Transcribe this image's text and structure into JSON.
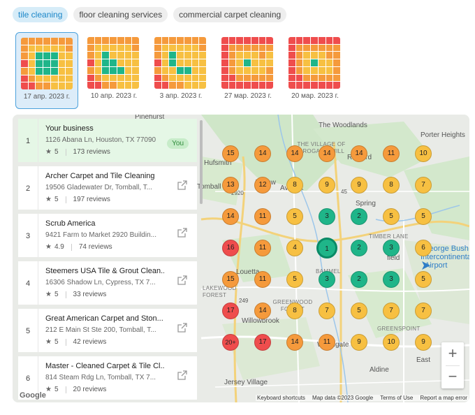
{
  "keywords": [
    {
      "label": "tile cleaning",
      "active": true
    },
    {
      "label": "floor cleaning services",
      "active": false
    },
    {
      "label": "commercial carpet cleaning",
      "active": false
    }
  ],
  "history": [
    {
      "date": "17 апр. 2023 г.",
      "active": true
    },
    {
      "date": "10 апр. 2023 г.",
      "active": false
    },
    {
      "date": "3 апр. 2023 г.",
      "active": false
    },
    {
      "date": "27 мар. 2023 г.",
      "active": false
    },
    {
      "date": "20 мар. 2023 г.",
      "active": false
    }
  ],
  "colors": {
    "green": "#1fb589",
    "yellow": "#f7c042",
    "orange": "#f59a3c",
    "red": "#ef4d4d",
    "you_bg": "#e5f7e6",
    "accent": "#1a86c8"
  },
  "results": [
    {
      "index": "1",
      "name": "Your business",
      "address": "1126 Abana Ln, Houston, TX 77090",
      "rating": "5",
      "reviews": "173 reviews",
      "badge": "You",
      "icon": "external-link-icon"
    },
    {
      "index": "2",
      "name": "Archer Carpet and Tile Cleaning",
      "address": "19506 Gladewater Dr, Tomball, T...",
      "rating": "5",
      "reviews": "197 reviews",
      "icon": "external-link-icon"
    },
    {
      "index": "3",
      "name": "Scrub America",
      "address": "9421 Farm to Market 2920 Buildin...",
      "rating": "4.9",
      "reviews": "74 reviews",
      "icon": "external-link-icon"
    },
    {
      "index": "4",
      "name": "Steemers USA Tile & Grout Clean...",
      "address": "16306 Shadow Ln, Cypress, TX 7...",
      "rating": "5",
      "reviews": "33 reviews",
      "icon": "external-link-icon"
    },
    {
      "index": "5",
      "name": "Great American Carpet and Ston...",
      "address": "212 E Main St Ste 200, Tomball, T...",
      "rating": "5",
      "reviews": "42 reviews",
      "icon": "external-link-icon"
    },
    {
      "index": "6",
      "name": "Master - Cleaned Carpet & Tile Cl...",
      "address": "814 Steam Rdg Ln, Tomball, TX 7...",
      "rating": "5",
      "reviews": "20 reviews",
      "icon": "external-link-icon"
    }
  ],
  "rank_grid": [
    [
      "15",
      "14",
      "14",
      "14",
      "14",
      "11",
      "10"
    ],
    [
      "13",
      "12",
      "8",
      "9",
      "9",
      "8",
      "7"
    ],
    [
      "14",
      "11",
      "5",
      "3",
      "2",
      "5",
      "5"
    ],
    [
      "16",
      "11",
      "4",
      "1",
      "2",
      "3",
      "6"
    ],
    [
      "15",
      "11",
      "5",
      "3",
      "2",
      "3",
      "5"
    ],
    [
      "17",
      "14",
      "8",
      "7",
      "5",
      "7",
      "7"
    ],
    [
      "20+",
      "17",
      "14",
      "11",
      "9",
      "10",
      "9"
    ]
  ],
  "map_labels": {
    "pinehurst": "Pinehurst",
    "the_woodlands": "The Woodlands",
    "village_grogans": "THE VILLAGE OF GROGAN'S MILL",
    "porter_heights": "Porter Heights",
    "hufsmith": "Hufsmith",
    "rayford": "Rayford",
    "tomball": "Tomball",
    "willow": "Willow",
    "avonak": "Avonak",
    "spring": "Spring",
    "timber_lane": "TIMBER LANE",
    "george_bush": "George Bush",
    "intercontinental": "Intercontinental",
    "airport": "Airport",
    "louetta": "Louetta",
    "bammel": "BAMMEL",
    "lakewood_forest": "LAKEWOOD FOREST",
    "greenwood_forest": "GREENWOOD FOREST",
    "greenspoint": "GREENSPOINT",
    "willowbrook": "Willowbrook",
    "woodgate": "Woodgate",
    "aldine": "Aldine",
    "jersey_village": "Jersey Village",
    "east": "East",
    "field": "field",
    "fm2920": "2920",
    "r45": "45",
    "r249": "249"
  },
  "zoom": {
    "in": "+",
    "out": "−"
  },
  "attribution": {
    "shortcuts": "Keyboard shortcuts",
    "data": "Map data ©2023 Google",
    "terms": "Terms of Use",
    "report": "Report a map error"
  },
  "google_logo": "Google"
}
